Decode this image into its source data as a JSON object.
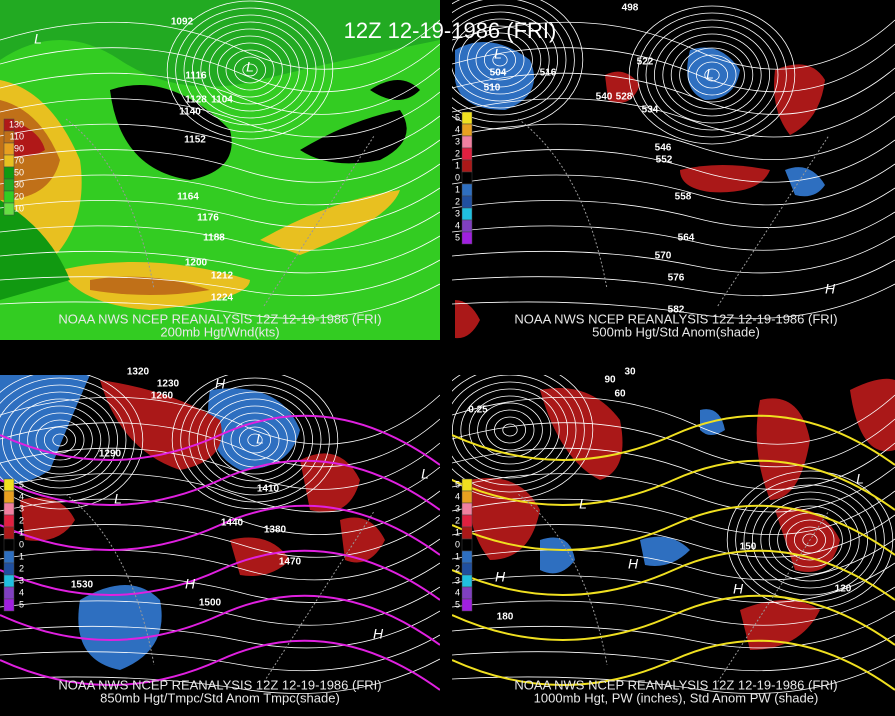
{
  "header": {
    "title": "12Z 12-19-1986 (FRI)"
  },
  "panels": [
    {
      "caption": [
        "NOAA NWS NCEP REANALYSIS 12Z 12-19-1986 (FRI)",
        "200mb Hgt/Wnd(kts)"
      ],
      "legend": [
        "130",
        "110",
        "90",
        "70",
        "50",
        "30",
        "20",
        "10"
      ],
      "labels": [
        "1092",
        "1116",
        "1128",
        "1104",
        "1140",
        "1152",
        "1164",
        "1176",
        "1188",
        "1200",
        "1212",
        "1224"
      ],
      "centers": [
        "L",
        "L"
      ]
    },
    {
      "caption": [
        "NOAA NWS NCEP REANALYSIS 12Z 12-19-1986 (FRI)",
        "500mb Hgt/Std Anom(shade)"
      ],
      "legend": [
        "5",
        "4",
        "3",
        "2",
        "1",
        "0",
        "1",
        "2",
        "3",
        "4",
        "5"
      ],
      "labels": [
        "498",
        "504",
        "510",
        "516",
        "522",
        "528",
        "534",
        "540",
        "546",
        "552",
        "558",
        "564",
        "570",
        "576",
        "582"
      ],
      "centers": [
        "L",
        "L",
        "H"
      ]
    },
    {
      "caption": [
        "NOAA NWS NCEP REANALYSIS 12Z 12-19-1986 (FRI)",
        "850mb Hgt/Tmpc/Std Anom Tmpc(shade)"
      ],
      "legend": [
        "5",
        "4",
        "3",
        "2",
        "1",
        "0",
        "1",
        "2",
        "3",
        "4",
        "5"
      ],
      "labels": [
        "1320",
        "1230",
        "1260",
        "1290",
        "1380",
        "1410",
        "1440",
        "1470",
        "1500",
        "1530"
      ],
      "centers": [
        "L",
        "L",
        "H",
        "H",
        "H",
        "L"
      ]
    },
    {
      "caption": [
        "NOAA NWS NCEP REANALYSIS 12Z 12-19-1986 (FRI)",
        "1000mb Hgt, PW (inches), Std Anom PW (shade)"
      ],
      "legend": [
        "5",
        "4",
        "3",
        "2",
        "1",
        "0",
        "1",
        "2",
        "3",
        "4",
        "5"
      ],
      "labels": [
        "90",
        "60",
        "30",
        "0.25",
        "150",
        "120",
        "180"
      ],
      "centers": [
        "H",
        "L",
        "H",
        "H",
        "L"
      ]
    }
  ]
}
